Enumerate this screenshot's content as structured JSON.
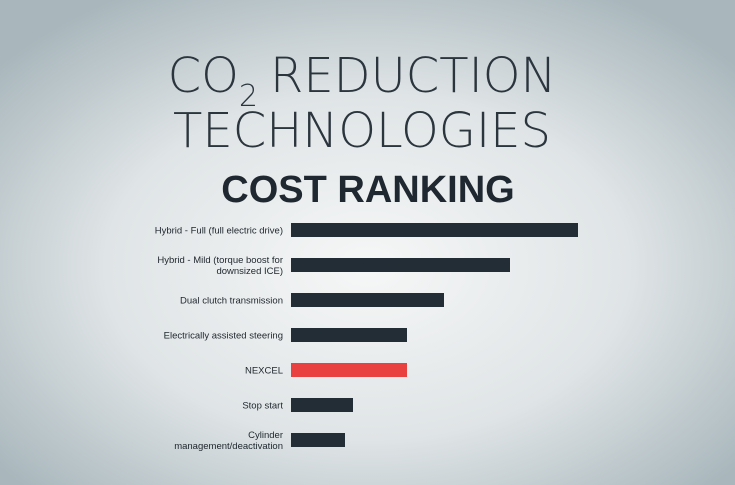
{
  "chart_data": {
    "type": "bar",
    "orientation": "horizontal",
    "title": {
      "prefix": "CO",
      "subscript": "2",
      "rest": "REDUCTION",
      "line2": "TECHNOLOGIES"
    },
    "subtitle": "COST RANKING",
    "categories": [
      [
        "Hybrid - Full (full electric drive)"
      ],
      [
        "Hybrid - Mild (torque boost for",
        "downsized ICE)"
      ],
      [
        "Dual clutch transmission"
      ],
      [
        "Electrically assisted steering"
      ],
      [
        "NEXCEL"
      ],
      [
        "Stop start"
      ],
      [
        "Cylinder",
        "management/deactivation"
      ]
    ],
    "values": [
      287,
      219,
      153,
      116,
      116,
      62,
      54
    ],
    "colors": [
      "#232d36",
      "#232d36",
      "#232d36",
      "#232d36",
      "#e8413f",
      "#232d36",
      "#232d36"
    ]
  }
}
